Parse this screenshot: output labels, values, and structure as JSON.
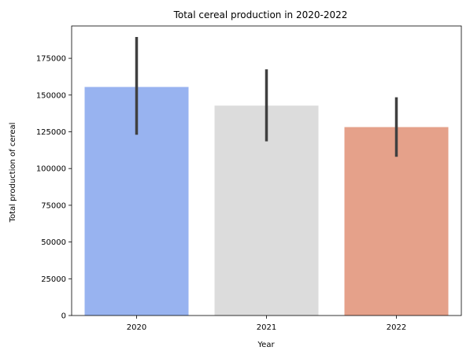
{
  "chart_data": {
    "type": "bar",
    "title": "Total cereal production in 2020-2022",
    "xlabel": "Year",
    "ylabel": "Total production of cereal",
    "categories": [
      "2020",
      "2021",
      "2022"
    ],
    "values": [
      155500,
      142800,
      128200
    ],
    "error_low": [
      123000,
      118500,
      108000
    ],
    "error_high": [
      189500,
      167500,
      148500
    ],
    "colors": [
      "#98b3f0",
      "#dcdcdc",
      "#e5a18a"
    ],
    "error_color": "#404040",
    "ylim": [
      0,
      197000
    ],
    "yticks": [
      0,
      25000,
      50000,
      75000,
      100000,
      125000,
      150000,
      175000
    ],
    "grid": false,
    "legend": "none"
  }
}
